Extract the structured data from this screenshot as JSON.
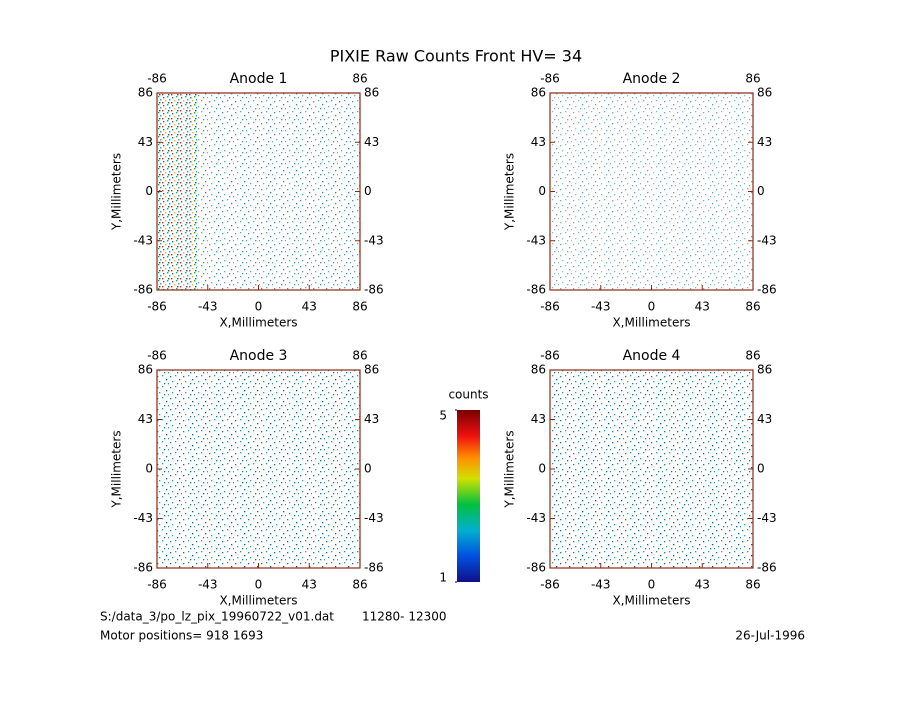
{
  "title": "PIXIE Raw Counts Front HV= 34",
  "footer": {
    "file": "S:/data_3/po_lz_pix_19960722_v01.dat",
    "range": "11280- 12300",
    "motor": "Motor positions= 918 1693",
    "date": "26-Jul-1996"
  },
  "chart_data": [
    {
      "type": "image",
      "title": "Anode 1",
      "xlabel": "X,Millimeters",
      "ylabel": "Y,Millimeters",
      "xlim": [
        -86,
        86
      ],
      "ylim": [
        -86,
        86
      ],
      "xticks": [
        -86,
        -43,
        0,
        43,
        86
      ],
      "yticks": [
        -86,
        -43,
        0,
        43,
        86
      ],
      "x2ticks": [
        -86,
        86
      ],
      "y2ticks": [
        -86,
        -43,
        0,
        43,
        86
      ]
    },
    {
      "type": "image",
      "title": "Anode 2",
      "xlabel": "X,Millimeters",
      "ylabel": "Y,Millimeters",
      "xlim": [
        -86,
        86
      ],
      "ylim": [
        -86,
        86
      ],
      "xticks": [
        -86,
        -43,
        0,
        43,
        86
      ],
      "yticks": [
        -86,
        -43,
        0,
        43,
        86
      ],
      "x2ticks": [
        -86,
        86
      ],
      "y2ticks": [
        -86,
        -43,
        0,
        43,
        86
      ]
    },
    {
      "type": "image",
      "title": "Anode 3",
      "xlabel": "X,Millimeters",
      "ylabel": "Y,Millimeters",
      "xlim": [
        -86,
        86
      ],
      "ylim": [
        -86,
        86
      ],
      "xticks": [
        -86,
        -43,
        0,
        43,
        86
      ],
      "yticks": [
        -86,
        -43,
        0,
        43,
        86
      ],
      "x2ticks": [
        -86,
        86
      ],
      "y2ticks": [
        -86,
        -43,
        0,
        43,
        86
      ]
    },
    {
      "type": "image",
      "title": "Anode 4",
      "xlabel": "X,Millimeters",
      "ylabel": "Y,Millimeters",
      "xlim": [
        -86,
        86
      ],
      "ylim": [
        -86,
        86
      ],
      "xticks": [
        -86,
        -43,
        0,
        43,
        86
      ],
      "yticks": [
        -86,
        -43,
        0,
        43,
        86
      ],
      "x2ticks": [
        -86,
        86
      ],
      "y2ticks": [
        -86,
        -43,
        0,
        43,
        86
      ]
    },
    {
      "type": "colorbar",
      "label": "counts",
      "lim": [
        1,
        5
      ],
      "ticks": [
        1,
        5
      ]
    }
  ]
}
